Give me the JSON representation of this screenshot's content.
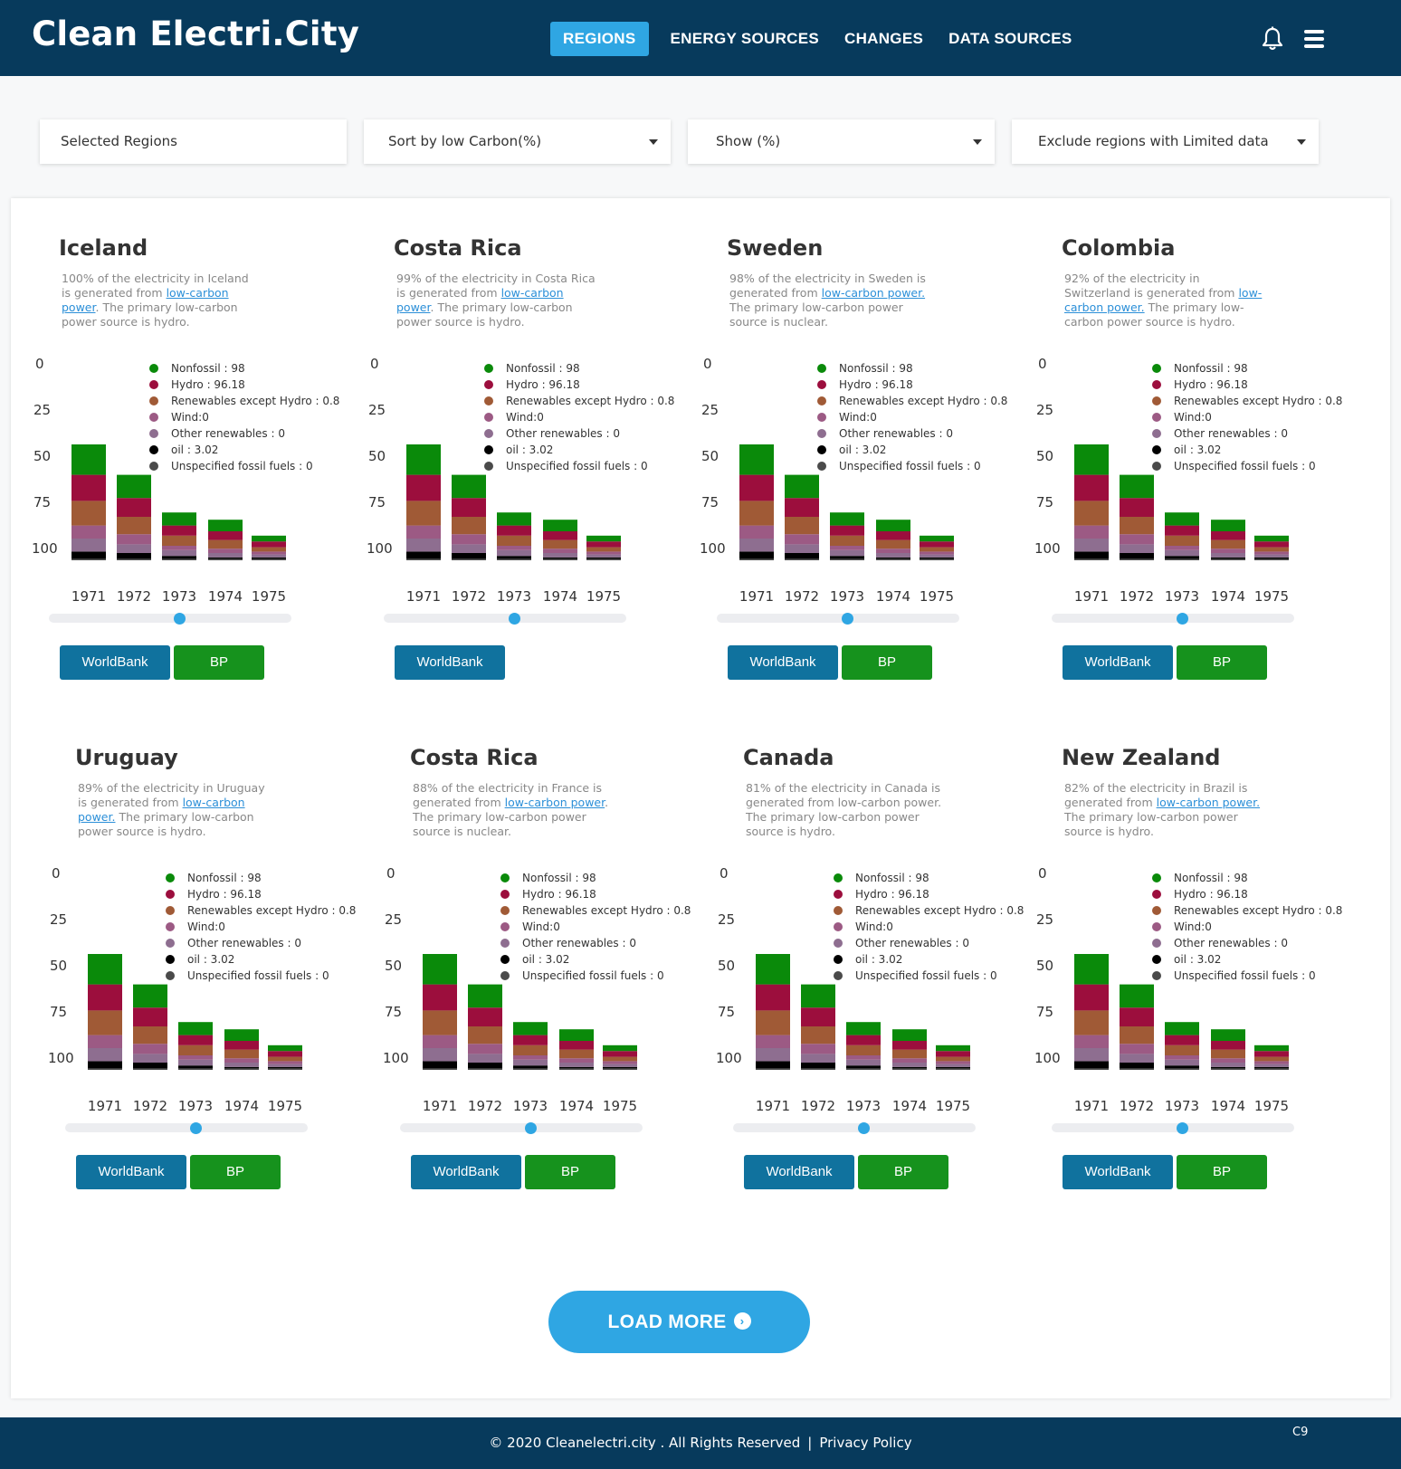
{
  "app": {
    "logo": "Clean Electri.City",
    "nav": [
      "REGIONS",
      "ENERGY SOURCES",
      "CHANGES",
      "DATA SOURCES"
    ]
  },
  "filters": [
    "Selected Regions",
    "Sort by low Carbon(%)",
    "Show (%)",
    "Exclude regions with Limited data"
  ],
  "legend": [
    {
      "label": "Nonfossil : 98",
      "color": "#0a8a0a"
    },
    {
      "label": "Hydro : 96.18",
      "color": "#9c0e3d"
    },
    {
      "label": "Renewables except Hydro : 0.8",
      "color": "#a05a36"
    },
    {
      "label": "Wind:0",
      "color": "#9c5a84"
    },
    {
      "label": "Other renewables : 0",
      "color": "#8e6e90"
    },
    {
      "label": "oil : 3.02",
      "color": "#000000"
    },
    {
      "label": "Unspecified fossil fuels : 0",
      "color": "#4a4a4a"
    }
  ],
  "chart_data": {
    "type": "bar",
    "categories": [
      "1971",
      "1972",
      "1973",
      "1974",
      "1975"
    ],
    "y_ticks": [
      "0",
      "25",
      "50",
      "75",
      "100"
    ],
    "series": [
      {
        "name": "Unspecified fossil fuels",
        "values": [
          1,
          1,
          1,
          1,
          1
        ]
      },
      {
        "name": "oil",
        "values": [
          5,
          4,
          2,
          1,
          1
        ]
      },
      {
        "name": "Other renewables",
        "values": [
          9,
          6,
          4,
          3,
          2
        ]
      },
      {
        "name": "Wind",
        "values": [
          9,
          7,
          3,
          3,
          2
        ]
      },
      {
        "name": "Renewables except Hydro",
        "values": [
          17,
          12,
          7,
          6,
          3
        ]
      },
      {
        "name": "Hydro",
        "values": [
          18,
          13,
          7,
          6,
          4
        ]
      },
      {
        "name": "Nonfossil",
        "values": [
          21,
          16,
          9,
          8,
          4
        ]
      }
    ]
  },
  "cards": [
    {
      "title": "Iceland",
      "desc_pre": "100% of the electricity in Iceland is generated from ",
      "link": "low-carbon power",
      "desc_post": ". The primary low-carbon power source is hydro.",
      "buttons": [
        "WorldBank",
        "BP"
      ]
    },
    {
      "title": "Costa Rica",
      "desc_pre": "99% of the electricity in Costa Rica is generated from ",
      "link": "low-carbon power",
      "desc_post": ". The primary low-carbon power source is hydro.",
      "buttons": [
        "WorldBank"
      ]
    },
    {
      "title": "Sweden",
      "desc_pre": "98% of the electricity in Sweden is generated from ",
      "link": "low-carbon power.",
      "desc_post": " The primary low-carbon power source is nuclear.",
      "buttons": [
        "WorldBank",
        "BP"
      ]
    },
    {
      "title": "Colombia",
      "desc_pre": "92% of the electricity in Switzerland is generated from ",
      "link": "low-carbon power.",
      "desc_post": " The primary low-carbon power source is hydro.",
      "buttons": [
        "WorldBank",
        "BP"
      ]
    },
    {
      "title": "Uruguay",
      "desc_pre": "89% of the electricity in Uruguay is generated from ",
      "link": "low-carbon power.",
      "desc_post": " The primary low-carbon power source is hydro.",
      "buttons": [
        "WorldBank",
        "BP"
      ]
    },
    {
      "title": "Costa Rica",
      "desc_pre": "88% of the electricity in France is generated from ",
      "link": "low-carbon power",
      "desc_post": ". The primary low-carbon power source is nuclear.",
      "buttons": [
        "WorldBank",
        "BP"
      ]
    },
    {
      "title": "Canada",
      "desc_pre": "81% of the electricity in Canada is generated from low-carbon power. The primary low-carbon power source is hydro.",
      "link": "",
      "desc_post": "",
      "buttons": [
        "WorldBank",
        "BP"
      ]
    },
    {
      "title": "New Zealand",
      "desc_pre": "82% of the electricity in Brazil is generated from ",
      "link": " low-carbon power.",
      "desc_post": " The primary low-carbon power source is hydro.",
      "buttons": [
        "WorldBank",
        "BP"
      ]
    }
  ],
  "load_more": "LOAD MORE",
  "footer": {
    "copyright": "© 2020 Cleanelectri.city . All Rights Reserved",
    "privacy": "Privacy Policy",
    "code": "C9"
  }
}
